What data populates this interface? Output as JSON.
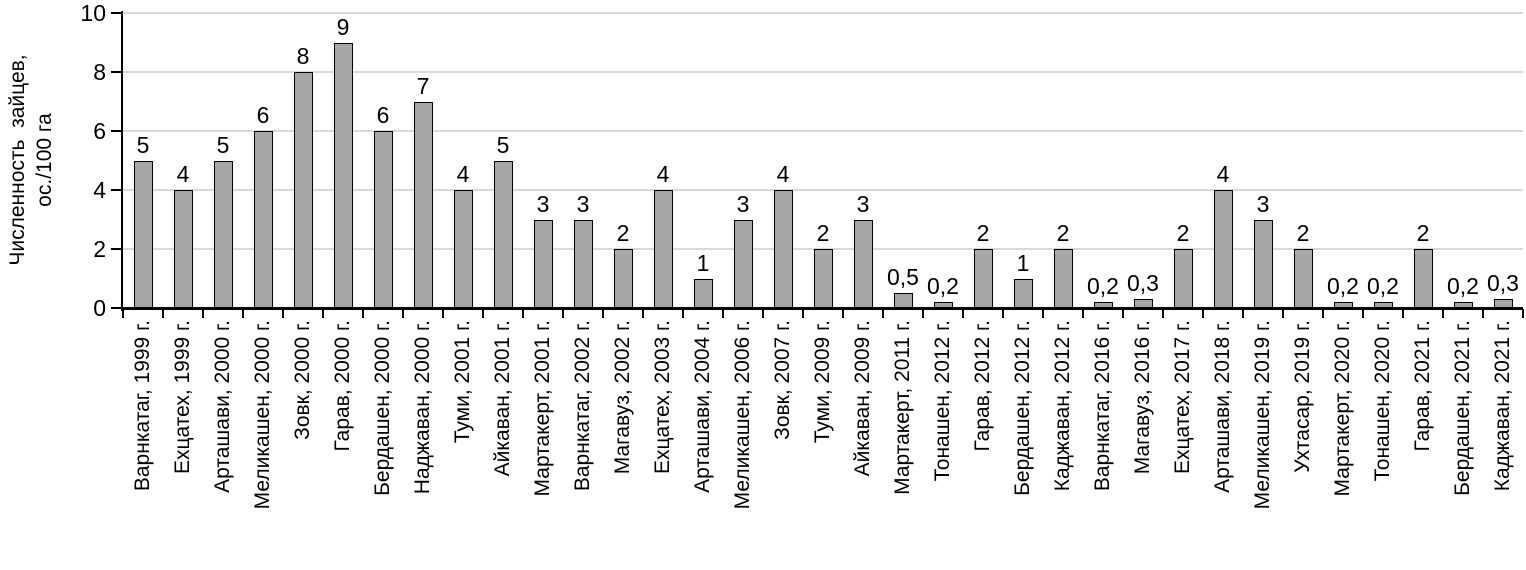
{
  "chart_data": {
    "type": "bar",
    "title": "",
    "ylabel": "Численность  зайцев,\nос./100 га",
    "xlabel": "",
    "ylim": [
      0,
      10
    ],
    "yticks": [
      0,
      2,
      4,
      6,
      8,
      10
    ],
    "grid": true,
    "legend_position": "none",
    "categories": [
      "Варнкатаг, 1999 г.",
      "Ехцатех, 1999 г.",
      "Арташави, 2000 г.",
      "Меликашен, 2000 г.",
      "Зовк, 2000 г.",
      "Гарав, 2000 г.",
      "Бердашен, 2000 г.",
      "Наджаван, 2000 г.",
      "Туми, 2001 г.",
      "Айкаван, 2001 г.",
      "Мартакерт, 2001 г.",
      "Варнкатаг, 2002 г.",
      "Магавуз, 2002 г.",
      "Ехцатех, 2003 г.",
      "Арташави, 2004 г.",
      "Меликашен, 2006 г.",
      "Зовк, 2007 г.",
      "Туми, 2009 г.",
      "Айкаван, 2009 г.",
      "Мартакерт, 2011 г.",
      "Тонашен, 2012 г.",
      "Гарав, 2012 г.",
      "Бердашен, 2012 г.",
      "Каджаван, 2012 г.",
      "Варнкатаг, 2016 г.",
      "Магавуз, 2016 г.",
      "Ехцатех, 2017 г.",
      "Арташави, 2018 г.",
      "Меликашен, 2019 г.",
      "Ухтасар, 2019 г.",
      "Мартакерт, 2020 г.",
      "Тонашен, 2020 г.",
      "Гарав, 2021 г.",
      "Бердашен, 2021 г.",
      "Каджаван, 2021 г."
    ],
    "values": [
      5,
      4,
      5,
      6,
      8,
      9,
      6,
      7,
      4,
      5,
      3,
      3,
      2,
      4,
      1,
      3,
      4,
      2,
      3,
      0.5,
      0.2,
      2,
      1,
      2,
      0.2,
      0.3,
      2,
      4,
      3,
      2,
      0.2,
      0.2,
      2,
      0.2,
      0.3
    ],
    "value_labels": [
      "5",
      "4",
      "5",
      "6",
      "8",
      "9",
      "6",
      "7",
      "4",
      "5",
      "3",
      "3",
      "2",
      "4",
      "1",
      "3",
      "4",
      "2",
      "3",
      "0,5",
      "0,2",
      "2",
      "1",
      "2",
      "0,2",
      "0,3",
      "2",
      "4",
      "3",
      "2",
      "0,2",
      "0,2",
      "2",
      "0,2",
      "0,3"
    ],
    "colors": {
      "bar_fill": "#a6a6a6",
      "bar_border": "#000000",
      "gridline": "#d9d9d9",
      "axis": "#000000",
      "text": "#000000",
      "background": "#ffffff"
    }
  }
}
